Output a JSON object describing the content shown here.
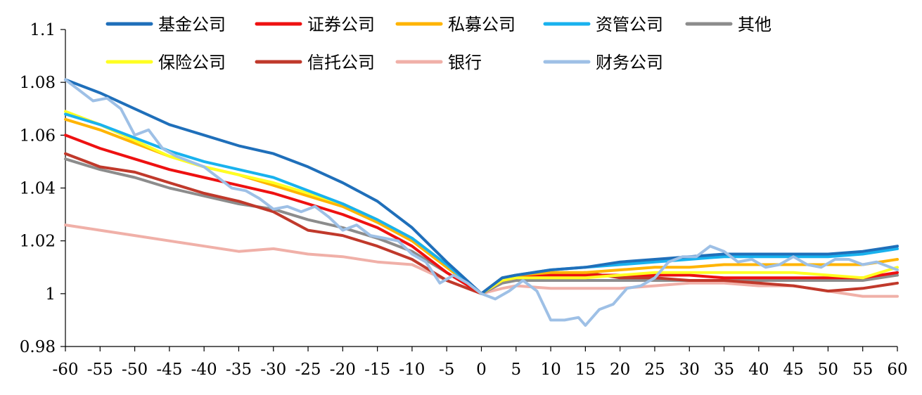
{
  "chart_data": {
    "type": "line",
    "title": "",
    "xlabel": "",
    "ylabel": "",
    "xlim": [
      -60,
      60
    ],
    "ylim": [
      0.98,
      1.1
    ],
    "xticks": [
      -60,
      -55,
      -50,
      -45,
      -40,
      -35,
      -30,
      -25,
      -20,
      -15,
      -10,
      -5,
      0,
      5,
      10,
      15,
      20,
      25,
      30,
      35,
      40,
      45,
      50,
      55,
      60
    ],
    "xtick_labels": [
      "-60",
      "-55",
      "-50",
      "-45",
      "-40",
      "-35",
      "-30",
      "-25",
      "-20",
      "-15",
      "-10",
      "-5",
      "0",
      "5",
      "10",
      "15",
      "20",
      "25",
      "30",
      "35",
      "40",
      "45",
      "50",
      "55",
      "60"
    ],
    "yticks": [
      0.98,
      1.0,
      1.02,
      1.04,
      1.06,
      1.08,
      1.1
    ],
    "ytick_labels": [
      "0.98",
      "1",
      "1.02",
      "1.04",
      "1.06",
      "1.08",
      "1.1"
    ],
    "grid": false,
    "legend_position": "top",
    "series": [
      {
        "name": "基金公司",
        "color": "#1f6fba",
        "points": [
          [
            -60,
            1.081
          ],
          [
            -55,
            1.076
          ],
          [
            -50,
            1.07
          ],
          [
            -45,
            1.064
          ],
          [
            -40,
            1.06
          ],
          [
            -35,
            1.056
          ],
          [
            -30,
            1.053
          ],
          [
            -25,
            1.048
          ],
          [
            -20,
            1.042
          ],
          [
            -15,
            1.035
          ],
          [
            -10,
            1.025
          ],
          [
            -5,
            1.012
          ],
          [
            0,
            1.0
          ],
          [
            3,
            1.006
          ],
          [
            5,
            1.007
          ],
          [
            10,
            1.009
          ],
          [
            15,
            1.01
          ],
          [
            20,
            1.012
          ],
          [
            25,
            1.013
          ],
          [
            30,
            1.014
          ],
          [
            35,
            1.015
          ],
          [
            40,
            1.015
          ],
          [
            45,
            1.015
          ],
          [
            50,
            1.015
          ],
          [
            55,
            1.016
          ],
          [
            60,
            1.018
          ]
        ]
      },
      {
        "name": "证券公司",
        "color": "#ee1111",
        "points": [
          [
            -60,
            1.06
          ],
          [
            -55,
            1.055
          ],
          [
            -50,
            1.051
          ],
          [
            -45,
            1.047
          ],
          [
            -40,
            1.044
          ],
          [
            -35,
            1.041
          ],
          [
            -30,
            1.038
          ],
          [
            -25,
            1.034
          ],
          [
            -20,
            1.03
          ],
          [
            -15,
            1.025
          ],
          [
            -10,
            1.018
          ],
          [
            -5,
            1.008
          ],
          [
            0,
            1.0
          ],
          [
            3,
            1.005
          ],
          [
            5,
            1.006
          ],
          [
            10,
            1.007
          ],
          [
            15,
            1.007
          ],
          [
            20,
            1.007
          ],
          [
            25,
            1.007
          ],
          [
            30,
            1.007
          ],
          [
            35,
            1.006
          ],
          [
            40,
            1.006
          ],
          [
            45,
            1.006
          ],
          [
            50,
            1.006
          ],
          [
            55,
            1.006
          ],
          [
            60,
            1.008
          ]
        ]
      },
      {
        "name": "私募公司",
        "color": "#ffb400",
        "points": [
          [
            -60,
            1.066
          ],
          [
            -55,
            1.062
          ],
          [
            -50,
            1.057
          ],
          [
            -45,
            1.052
          ],
          [
            -40,
            1.048
          ],
          [
            -35,
            1.045
          ],
          [
            -30,
            1.041
          ],
          [
            -25,
            1.037
          ],
          [
            -20,
            1.033
          ],
          [
            -15,
            1.027
          ],
          [
            -10,
            1.02
          ],
          [
            -5,
            1.01
          ],
          [
            0,
            1.0
          ],
          [
            3,
            1.006
          ],
          [
            5,
            1.007
          ],
          [
            10,
            1.008
          ],
          [
            15,
            1.008
          ],
          [
            20,
            1.009
          ],
          [
            25,
            1.01
          ],
          [
            30,
            1.01
          ],
          [
            35,
            1.011
          ],
          [
            40,
            1.011
          ],
          [
            45,
            1.011
          ],
          [
            50,
            1.011
          ],
          [
            55,
            1.011
          ],
          [
            60,
            1.013
          ]
        ]
      },
      {
        "name": "资管公司",
        "color": "#19b2ee",
        "points": [
          [
            -60,
            1.068
          ],
          [
            -55,
            1.064
          ],
          [
            -50,
            1.059
          ],
          [
            -45,
            1.054
          ],
          [
            -40,
            1.05
          ],
          [
            -35,
            1.047
          ],
          [
            -30,
            1.044
          ],
          [
            -25,
            1.039
          ],
          [
            -20,
            1.034
          ],
          [
            -15,
            1.028
          ],
          [
            -10,
            1.021
          ],
          [
            -5,
            1.011
          ],
          [
            0,
            1.0
          ],
          [
            3,
            1.006
          ],
          [
            5,
            1.007
          ],
          [
            10,
            1.009
          ],
          [
            15,
            1.01
          ],
          [
            20,
            1.011
          ],
          [
            25,
            1.012
          ],
          [
            30,
            1.013
          ],
          [
            35,
            1.014
          ],
          [
            40,
            1.014
          ],
          [
            45,
            1.014
          ],
          [
            50,
            1.014
          ],
          [
            55,
            1.015
          ],
          [
            60,
            1.017
          ]
        ]
      },
      {
        "name": "其他",
        "color": "#8c8c8c",
        "points": [
          [
            -60,
            1.051
          ],
          [
            -55,
            1.047
          ],
          [
            -50,
            1.044
          ],
          [
            -45,
            1.04
          ],
          [
            -40,
            1.037
          ],
          [
            -35,
            1.034
          ],
          [
            -30,
            1.032
          ],
          [
            -25,
            1.028
          ],
          [
            -20,
            1.025
          ],
          [
            -15,
            1.021
          ],
          [
            -10,
            1.016
          ],
          [
            -5,
            1.008
          ],
          [
            0,
            1.0
          ],
          [
            3,
            1.004
          ],
          [
            5,
            1.005
          ],
          [
            10,
            1.005
          ],
          [
            15,
            1.005
          ],
          [
            20,
            1.005
          ],
          [
            25,
            1.005
          ],
          [
            30,
            1.005
          ],
          [
            35,
            1.005
          ],
          [
            40,
            1.005
          ],
          [
            45,
            1.005
          ],
          [
            50,
            1.005
          ],
          [
            55,
            1.005
          ],
          [
            60,
            1.007
          ]
        ]
      },
      {
        "name": "保险公司",
        "color": "#ffff22",
        "points": [
          [
            -60,
            1.069
          ],
          [
            -55,
            1.064
          ],
          [
            -50,
            1.058
          ],
          [
            -45,
            1.052
          ],
          [
            -40,
            1.048
          ],
          [
            -35,
            1.045
          ],
          [
            -30,
            1.042
          ],
          [
            -25,
            1.038
          ],
          [
            -20,
            1.034
          ],
          [
            -15,
            1.028
          ],
          [
            -10,
            1.021
          ],
          [
            -5,
            1.011
          ],
          [
            0,
            1.0
          ],
          [
            3,
            1.005
          ],
          [
            5,
            1.006
          ],
          [
            10,
            1.006
          ],
          [
            15,
            1.006
          ],
          [
            20,
            1.007
          ],
          [
            25,
            1.008
          ],
          [
            30,
            1.008
          ],
          [
            35,
            1.008
          ],
          [
            40,
            1.008
          ],
          [
            45,
            1.008
          ],
          [
            50,
            1.007
          ],
          [
            55,
            1.006
          ],
          [
            60,
            1.01
          ]
        ]
      },
      {
        "name": "信托公司",
        "color": "#c0392b",
        "points": [
          [
            -60,
            1.053
          ],
          [
            -55,
            1.048
          ],
          [
            -50,
            1.046
          ],
          [
            -45,
            1.042
          ],
          [
            -40,
            1.038
          ],
          [
            -35,
            1.035
          ],
          [
            -30,
            1.031
          ],
          [
            -25,
            1.024
          ],
          [
            -20,
            1.022
          ],
          [
            -15,
            1.018
          ],
          [
            -10,
            1.013
          ],
          [
            -5,
            1.005
          ],
          [
            0,
            1.0
          ],
          [
            3,
            1.006
          ],
          [
            5,
            1.007
          ],
          [
            10,
            1.007
          ],
          [
            15,
            1.008
          ],
          [
            20,
            1.006
          ],
          [
            25,
            1.006
          ],
          [
            30,
            1.005
          ],
          [
            35,
            1.005
          ],
          [
            40,
            1.004
          ],
          [
            45,
            1.003
          ],
          [
            50,
            1.001
          ],
          [
            55,
            1.002
          ],
          [
            60,
            1.004
          ]
        ]
      },
      {
        "name": "银行",
        "color": "#f0b0a8",
        "points": [
          [
            -60,
            1.026
          ],
          [
            -55,
            1.024
          ],
          [
            -50,
            1.022
          ],
          [
            -45,
            1.02
          ],
          [
            -40,
            1.018
          ],
          [
            -35,
            1.016
          ],
          [
            -30,
            1.017
          ],
          [
            -25,
            1.015
          ],
          [
            -20,
            1.014
          ],
          [
            -15,
            1.012
          ],
          [
            -10,
            1.011
          ],
          [
            -5,
            1.005
          ],
          [
            0,
            1.0
          ],
          [
            3,
            1.002
          ],
          [
            5,
            1.003
          ],
          [
            10,
            1.002
          ],
          [
            15,
            1.002
          ],
          [
            20,
            1.002
          ],
          [
            25,
            1.003
          ],
          [
            30,
            1.004
          ],
          [
            35,
            1.004
          ],
          [
            40,
            1.003
          ],
          [
            45,
            1.003
          ],
          [
            50,
            1.001
          ],
          [
            55,
            0.999
          ],
          [
            60,
            0.999
          ]
        ]
      },
      {
        "name": "财务公司",
        "color": "#9ec0e6",
        "points": [
          [
            -60,
            1.081
          ],
          [
            -58,
            1.077
          ],
          [
            -56,
            1.073
          ],
          [
            -54,
            1.074
          ],
          [
            -52,
            1.07
          ],
          [
            -50,
            1.06
          ],
          [
            -48,
            1.062
          ],
          [
            -46,
            1.055
          ],
          [
            -44,
            1.052
          ],
          [
            -42,
            1.05
          ],
          [
            -40,
            1.048
          ],
          [
            -38,
            1.044
          ],
          [
            -36,
            1.04
          ],
          [
            -34,
            1.039
          ],
          [
            -32,
            1.036
          ],
          [
            -30,
            1.032
          ],
          [
            -28,
            1.033
          ],
          [
            -26,
            1.031
          ],
          [
            -24,
            1.033
          ],
          [
            -22,
            1.029
          ],
          [
            -20,
            1.024
          ],
          [
            -18,
            1.026
          ],
          [
            -16,
            1.022
          ],
          [
            -14,
            1.021
          ],
          [
            -12,
            1.02
          ],
          [
            -10,
            1.015
          ],
          [
            -8,
            1.012
          ],
          [
            -6,
            1.004
          ],
          [
            -4,
            1.007
          ],
          [
            -2,
            1.004
          ],
          [
            0,
            1.0
          ],
          [
            2,
            0.998
          ],
          [
            4,
            1.001
          ],
          [
            6,
            1.005
          ],
          [
            8,
            1.001
          ],
          [
            10,
            0.99
          ],
          [
            12,
            0.99
          ],
          [
            14,
            0.991
          ],
          [
            15,
            0.988
          ],
          [
            17,
            0.994
          ],
          [
            19,
            0.996
          ],
          [
            21,
            1.002
          ],
          [
            23,
            1.003
          ],
          [
            25,
            1.006
          ],
          [
            27,
            1.012
          ],
          [
            29,
            1.014
          ],
          [
            31,
            1.014
          ],
          [
            33,
            1.018
          ],
          [
            35,
            1.016
          ],
          [
            37,
            1.012
          ],
          [
            39,
            1.013
          ],
          [
            41,
            1.01
          ],
          [
            43,
            1.011
          ],
          [
            45,
            1.014
          ],
          [
            47,
            1.011
          ],
          [
            49,
            1.01
          ],
          [
            51,
            1.013
          ],
          [
            53,
            1.013
          ],
          [
            55,
            1.011
          ],
          [
            57,
            1.012
          ],
          [
            60,
            1.009
          ]
        ]
      }
    ]
  }
}
